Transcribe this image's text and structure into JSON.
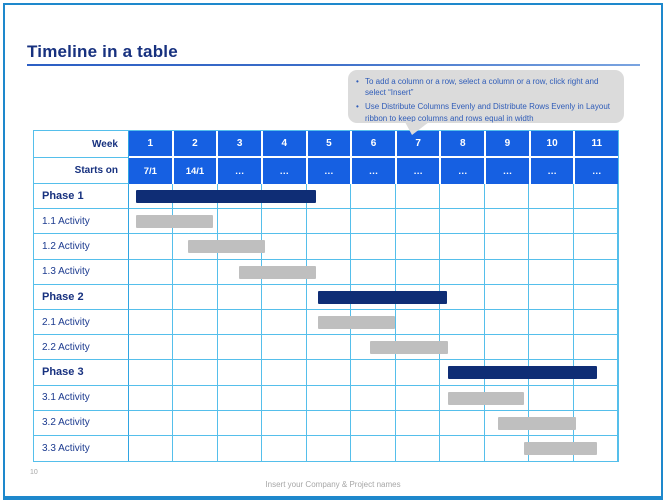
{
  "slide": {
    "title": "Timeline in a table",
    "page_number": "10",
    "footer_text": "Insert your Company & Project names"
  },
  "callout": {
    "bullets": [
      "To add a column or a row, select a column or a row, click right and select “Insert”",
      "Use Distribute Columns Evenly and Distribute Rows Evenly in Layout ribbon to keep columns and rows equal in width"
    ]
  },
  "table": {
    "corner_label": "Week",
    "starts_on_label": "Starts on",
    "num_weeks": 11,
    "weeks": [
      "1",
      "2",
      "3",
      "4",
      "5",
      "6",
      "7",
      "8",
      "9",
      "10",
      "11"
    ],
    "starts_on": [
      "7/1",
      "14/1",
      "…",
      "…",
      "…",
      "…",
      "…",
      "…",
      "…",
      "…",
      "…"
    ],
    "rows": [
      {
        "label": "Phase 1",
        "type": "phase",
        "bar_start": 0.15,
        "bar_end": 4.2
      },
      {
        "label": "1.1 Activity",
        "type": "activity",
        "bar_start": 0.16,
        "bar_end": 1.9
      },
      {
        "label": "1.2 Activity",
        "type": "activity",
        "bar_start": 1.33,
        "bar_end": 3.07
      },
      {
        "label": "1.3 Activity",
        "type": "activity",
        "bar_start": 2.48,
        "bar_end": 4.21
      },
      {
        "label": "Phase 2",
        "type": "phase",
        "bar_start": 4.25,
        "bar_end": 7.15
      },
      {
        "label": "2.1 Activity",
        "type": "activity",
        "bar_start": 4.25,
        "bar_end": 5.99
      },
      {
        "label": "2.2 Activity",
        "type": "activity",
        "bar_start": 5.42,
        "bar_end": 7.17
      },
      {
        "label": "Phase 3",
        "type": "phase",
        "bar_start": 7.17,
        "bar_end": 10.53
      },
      {
        "label": "3.1 Activity",
        "type": "activity",
        "bar_start": 7.17,
        "bar_end": 8.88
      },
      {
        "label": "3.2 Activity",
        "type": "activity",
        "bar_start": 8.31,
        "bar_end": 10.06
      },
      {
        "label": "3.3 Activity",
        "type": "activity",
        "bar_start": 8.88,
        "bar_end": 10.53
      }
    ]
  },
  "colors": {
    "header_blue": "#1660E2",
    "phase_bar": "#0F2D75",
    "activity_bar": "#BFBFBF",
    "grid_line": "#55BFEB",
    "label_divider": "#2FA4E2",
    "title_text": "#17317F",
    "callout_bg": "#DBDBDB",
    "callout_text": "#2F5CB8",
    "slide_border": "#1E88CC",
    "footer_gray": "#A6A6A6"
  }
}
